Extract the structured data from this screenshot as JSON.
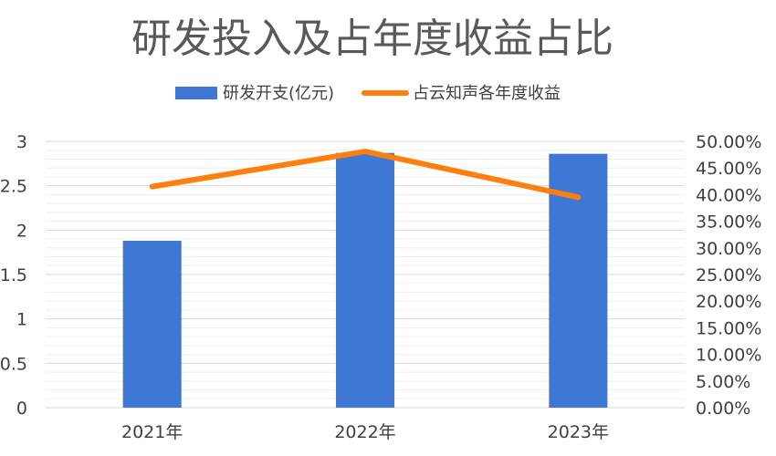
{
  "chart_data": {
    "type": "bar",
    "title": "研发投入及占年度收益占比",
    "categories": [
      "2021年",
      "2022年",
      "2023年"
    ],
    "series": [
      {
        "name": "研发开支(亿元)",
        "kind": "bar",
        "axis": "left",
        "color": "#3f78d4",
        "values": [
          1.88,
          2.87,
          2.86
        ]
      },
      {
        "name": "占云知声各年度收益",
        "kind": "line",
        "axis": "right",
        "color": "#ff7f0e",
        "values": [
          0.415,
          0.481,
          0.395
        ]
      }
    ],
    "y_left": {
      "ylim": [
        0,
        3
      ],
      "ticks": [
        "0",
        "0.5",
        "1",
        "1.5",
        "2",
        "2.5",
        "3"
      ]
    },
    "y_right": {
      "ylim": [
        0,
        0.5
      ],
      "ticks": [
        "0.00%",
        "5.00%",
        "10.00%",
        "15.00%",
        "20.00%",
        "25.00%",
        "30.00%",
        "35.00%",
        "40.00%",
        "45.00%",
        "50.00%"
      ]
    },
    "grid": true,
    "legend_position": "top"
  }
}
